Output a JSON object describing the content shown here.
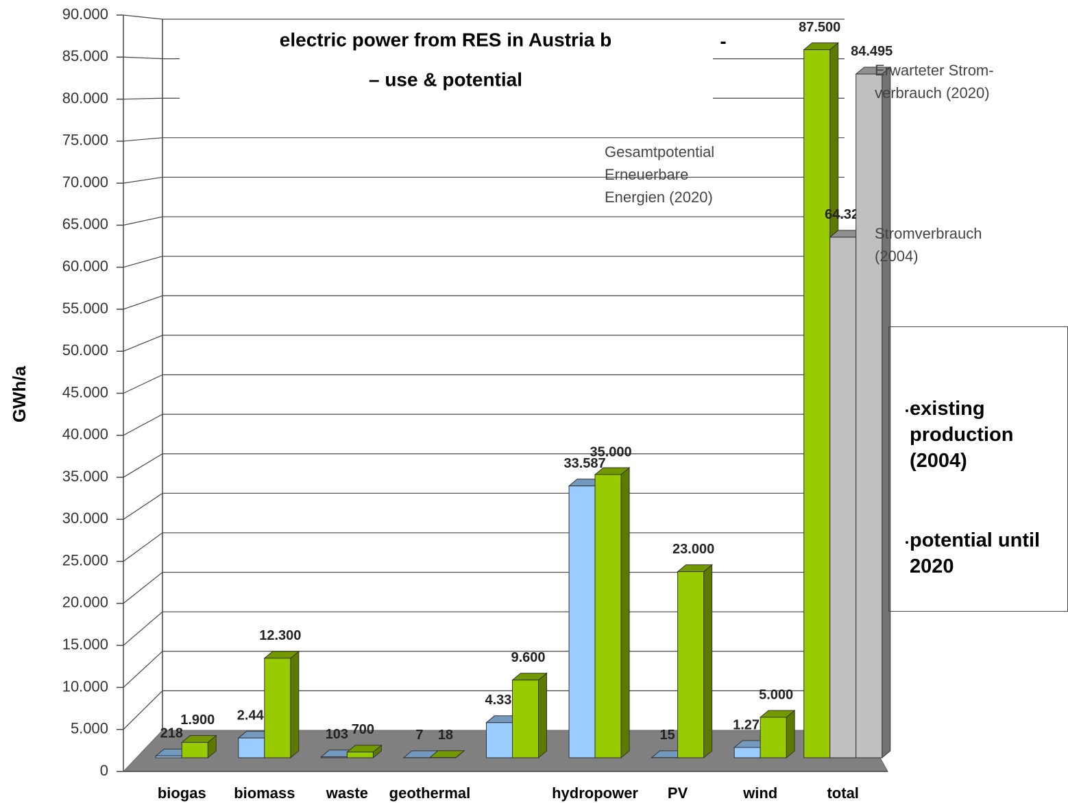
{
  "chart_data": {
    "type": "bar3d",
    "title": "electric power from RES  in Austria b",
    "subtitle": "– use & potential",
    "annotations": [
      "-",
      "Gesamtpotential Erneuerbare Energien (2020)"
    ],
    "y_label": "GWh/a",
    "categories": [
      "biogas",
      "biomass",
      "waste",
      "geothermal",
      null,
      "hydropower",
      "PV",
      "wind",
      "total"
    ],
    "series": [
      {
        "name": "existing production (2004)",
        "color": "#99ccff",
        "values": [
          218,
          2441,
          103,
          7,
          4338,
          33587,
          15,
          1273,
          null
        ],
        "value_labels": [
          "218",
          "2.441",
          "103",
          "7",
          "4.338",
          "33.587",
          "15",
          "1.273",
          null
        ]
      },
      {
        "name": "potential until 2020",
        "color": "#99cc00",
        "values": [
          1900,
          12300,
          700,
          18,
          9600,
          35000,
          23000,
          5000,
          87500
        ],
        "value_labels": [
          "1.900",
          "12.300",
          "700",
          "18",
          "9.600",
          "35.000",
          "23.000",
          "5.000",
          "87.500"
        ]
      },
      {
        "name": "Stromverbrauch (2004)",
        "color": "#c0c0c0",
        "values": [
          null,
          null,
          null,
          null,
          null,
          null,
          null,
          null,
          64328
        ],
        "value_labels": [
          null,
          null,
          null,
          null,
          null,
          null,
          null,
          null,
          "64.328"
        ]
      },
      {
        "name": "Erwarteter Strom-verbrauch (2020)",
        "color": "#c0c0c0",
        "values": [
          null,
          null,
          null,
          null,
          null,
          null,
          null,
          null,
          84495
        ],
        "value_labels": [
          null,
          null,
          null,
          null,
          null,
          null,
          null,
          null,
          "84.495"
        ]
      }
    ],
    "ylim": [
      0,
      90000
    ],
    "yticks": [
      0,
      {
        "value": 5000,
        "label": "5.000"
      },
      {
        "value": 10000,
        "label": "10.000"
      },
      {
        "value": 15000,
        "label": "15.000"
      },
      {
        "value": 20000,
        "label": "20.000"
      },
      {
        "value": 25000,
        "label": "25.000"
      },
      {
        "value": 30000,
        "label": "30.000"
      },
      {
        "value": 35000,
        "label": "35.000"
      },
      {
        "value": 40000,
        "label": "40.000"
      },
      {
        "value": 45000,
        "label": "45.000"
      },
      {
        "value": 50000,
        "label": "50.000"
      },
      {
        "value": 55000,
        "label": "55.000"
      },
      {
        "value": 60000,
        "label": "60.000"
      },
      {
        "value": 65000,
        "label": "65.000"
      },
      {
        "value": 70000,
        "label": "70.000"
      },
      {
        "value": 75000,
        "label": "75.000"
      },
      {
        "value": 80000,
        "label": "80.000"
      },
      {
        "value": 85000,
        "label": "85.000"
      },
      {
        "value": 90000,
        "label": "90.000"
      }
    ],
    "grid": true
  }
}
